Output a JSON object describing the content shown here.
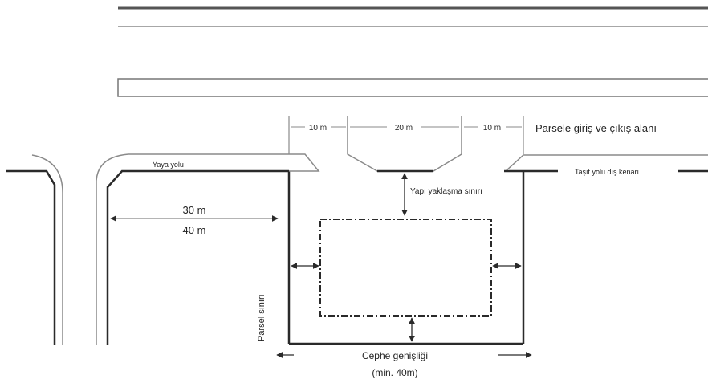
{
  "labels": {
    "left_dim": "10 m",
    "center_dim": "20 m",
    "right_dim": "10 m",
    "access_area": "Parsele giriş ve çıkış alanı",
    "sidewalk": "Yaya yolu",
    "road_edge": "Taşıt yolu dış kenarı",
    "setback_line": "Yapı yaklaşma sınırı",
    "block_width_a": "30 m",
    "block_width_b": "40 m",
    "parcel_boundary": "Parsel sınırı",
    "facade_width": "Cephe genişliği",
    "facade_min": "(min. 40m)"
  },
  "colors": {
    "line": "#2a2a2a",
    "light_line": "#8a8a8a",
    "text": "#222222"
  }
}
